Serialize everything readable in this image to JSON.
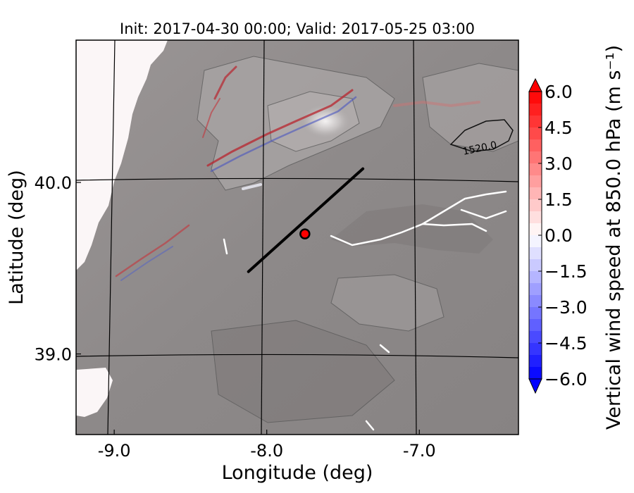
{
  "chart_data": {
    "type": "map",
    "title": "Init: 2017-04-30 00:00; Valid: 2017-05-25 03:00",
    "xlabel": "Longitude (deg)",
    "ylabel": "Latitude (deg)",
    "xlim": [
      -9.25,
      -6.35
    ],
    "ylim": [
      38.53,
      40.83
    ],
    "x_ticks": [
      {
        "value": -9.0,
        "label": "-9.0"
      },
      {
        "value": -8.0,
        "label": "-8.0"
      },
      {
        "value": -7.0,
        "label": "-7.0"
      }
    ],
    "y_ticks": [
      {
        "value": 40.0,
        "label": "40.0"
      },
      {
        "value": 39.0,
        "label": "39.0"
      }
    ],
    "grid": true,
    "cross_section_line": {
      "start": [
        -8.12,
        39.48
      ],
      "end": [
        -7.37,
        40.08
      ],
      "color": "#000000"
    },
    "marker": {
      "lon": -7.75,
      "lat": 39.7,
      "color": "#ff0000"
    },
    "contour_labels": [
      {
        "text": "1520.0",
        "lon": -6.68,
        "lat": 40.22
      }
    ],
    "colorbar": {
      "label": "Vertical wind speed at 850.0 hPa (m s⁻¹)",
      "min": -6.0,
      "max": 6.0,
      "extend": "both",
      "cmap": "bwr",
      "ticks": [
        {
          "value": 6.0,
          "label": "6.0"
        },
        {
          "value": 4.5,
          "label": "4.5"
        },
        {
          "value": 3.0,
          "label": "3.0"
        },
        {
          "value": 1.5,
          "label": "1.5"
        },
        {
          "value": 0.0,
          "label": "0.0"
        },
        {
          "value": -1.5,
          "label": "−1.5"
        },
        {
          "value": -3.0,
          "label": "−3.0"
        },
        {
          "value": -4.5,
          "label": "−4.5"
        },
        {
          "value": -6.0,
          "label": "−6.0"
        }
      ]
    }
  }
}
